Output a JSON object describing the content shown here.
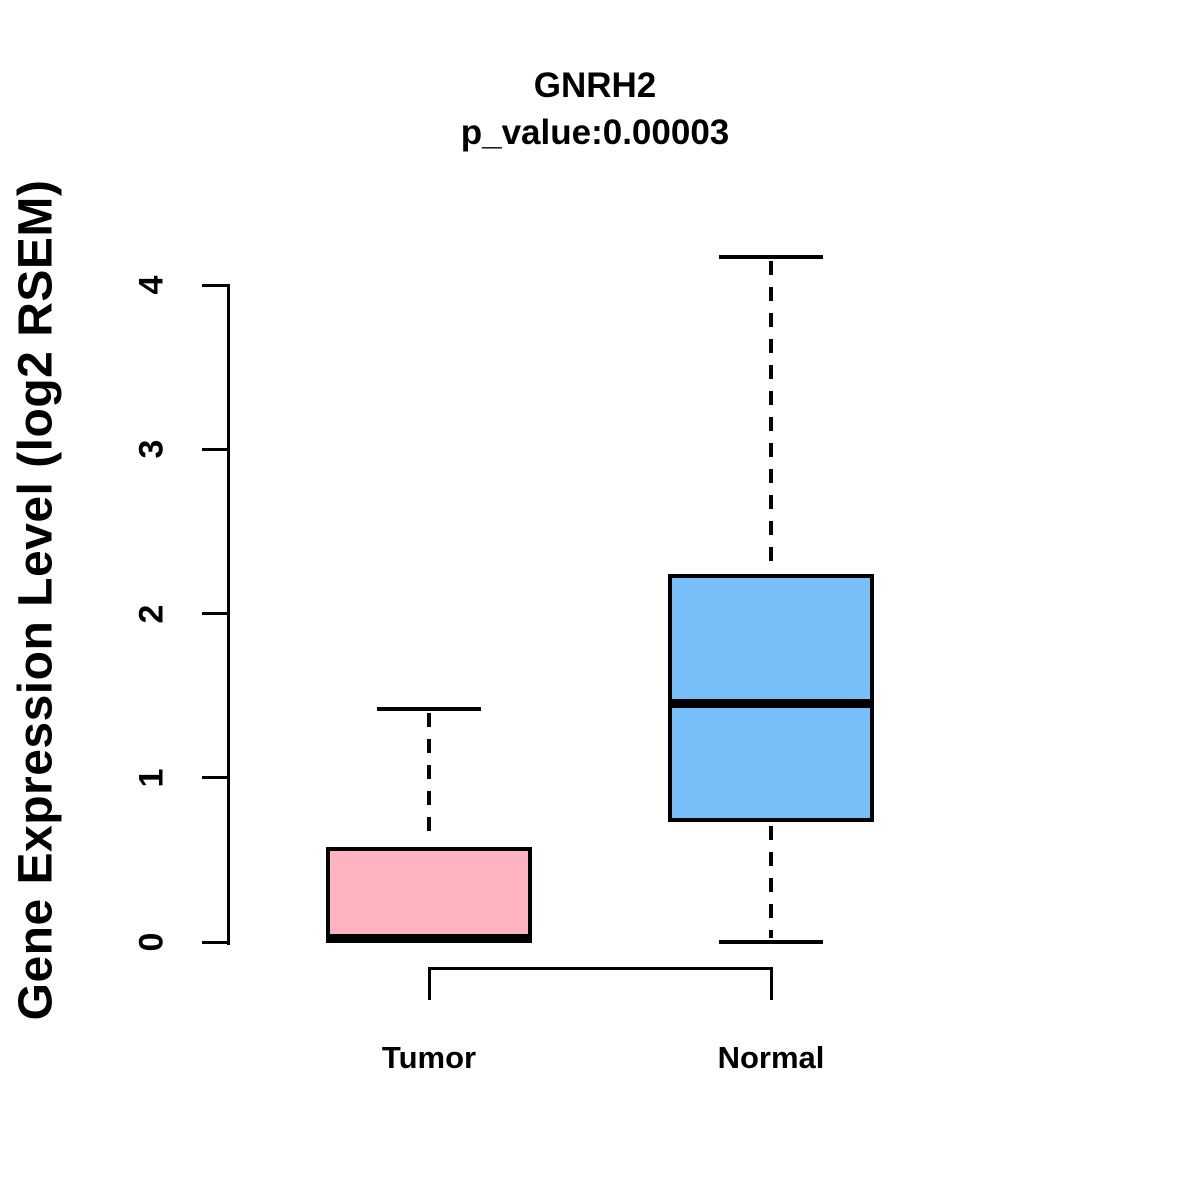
{
  "title": "GNRH2",
  "subtitle": "p_value:0.00003",
  "ylabel": "Gene Expression Level (log2 RSEM)",
  "chart_data": {
    "type": "boxplot",
    "title": "GNRH2",
    "subtitle": "p_value:0.00003",
    "ylabel": "Gene Expression Level (log2 RSEM)",
    "xlabel": "",
    "categories": [
      "Tumor",
      "Normal"
    ],
    "series": [
      {
        "name": "Tumor",
        "min": 0,
        "q1": 0.02,
        "median": 0.02,
        "q3": 0.58,
        "max": 1.42,
        "color": "#FFB3C1"
      },
      {
        "name": "Normal",
        "min": 0,
        "q1": 0.73,
        "median": 1.45,
        "q3": 2.24,
        "max": 4.17,
        "color": "#78BEF8"
      }
    ],
    "yticks": [
      "0",
      "1",
      "2",
      "3",
      "4"
    ],
    "ylim": [
      -0.35,
      4.3
    ],
    "grid": false,
    "legend": "none",
    "whisker_style": "dashed",
    "comparison_bracket": {
      "between": [
        "Tumor",
        "Normal"
      ]
    },
    "colors": {
      "axis": "#000000",
      "tumor_fill": "#FFB3C1",
      "normal_fill": "#78BEF8"
    }
  }
}
